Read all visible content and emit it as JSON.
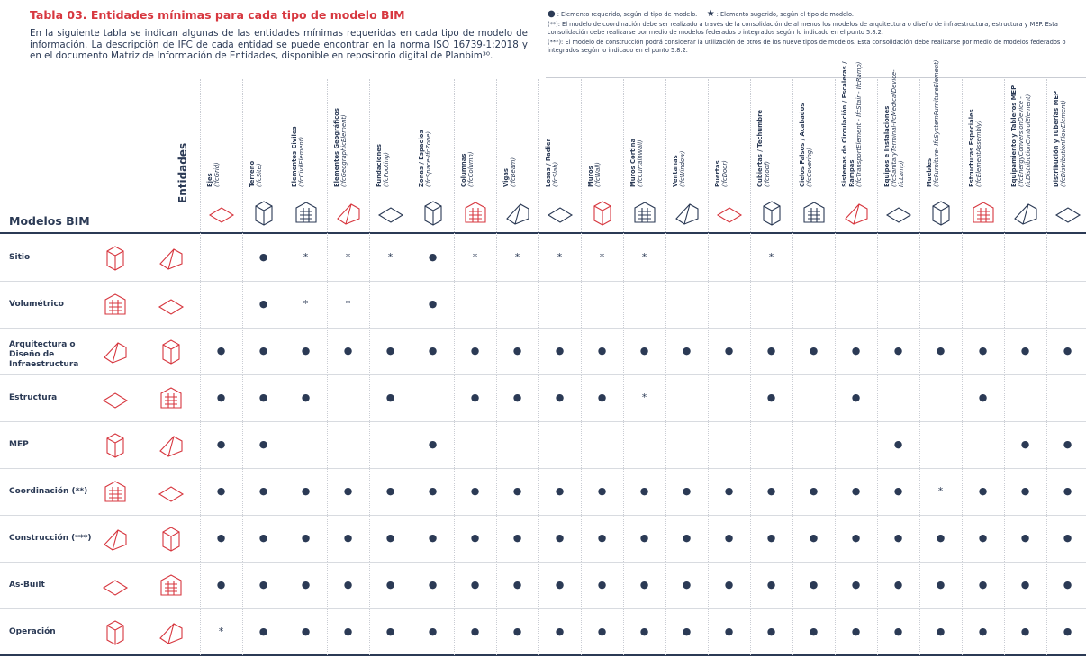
{
  "header": {
    "title": "Tabla 03. Entidades mínimas para cada tipo de modelo BIM",
    "description": "En la siguiente tabla se indican algunas de las entidades mínimas requeridas en cada tipo de modelo de información. La descripción de IFC de cada entidad se puede encontrar en la norma ISO 16739-1:2018 y en el documento Matriz de Información de Entidades, disponible en repositorio digital de Planbim³⁰."
  },
  "legend": {
    "required_symbol": "●",
    "required_text": ": Elemento requerido, según el tipo de modelo.",
    "suggested_symbol": "★",
    "suggested_text": ": Elemento sugerido, según el tipo de modelo.",
    "notes": [
      "(**): El modelo de coordinación debe ser realizado a través de la consolidación de al menos los modelos de arquitectura o diseño de infraestructura, estructura y MEP. Esta consolidación debe realizarse por medio de modelos federados o integrados según lo indicado en el punto 5.8.2.",
      "(***): El modelo de construcción podrá considerar la utilización de otros de los nueve tipos de modelos. Esta consolidación debe realizarse por medio de modelos federados o integrados según lo indicado en el punto 5.8.2."
    ]
  },
  "table": {
    "row_header": "Modelos BIM",
    "column_header": "Entidades",
    "columns": [
      {
        "name": "Ejes",
        "ifc": "(IfcGrid)"
      },
      {
        "name": "Terreno",
        "ifc": "(IfcSite)"
      },
      {
        "name": "Elementos Civiles",
        "ifc": "(IfcCivilElement)"
      },
      {
        "name": "Elementos Geográficos",
        "ifc": "(IfcGeographicElement)"
      },
      {
        "name": "Fundaciones",
        "ifc": "(IfcFooting)"
      },
      {
        "name": "Zonas / Espacios",
        "ifc": "(IfcSpace-IfcZone)"
      },
      {
        "name": "Columnas",
        "ifc": "(IfcColumn)"
      },
      {
        "name": "Vigas",
        "ifc": "(IfcBeam)"
      },
      {
        "name": "Losas / Radier",
        "ifc": "(IfcSlab)"
      },
      {
        "name": "Muros",
        "ifc": "(IfcWall)"
      },
      {
        "name": "Muros Cortina",
        "ifc": "(IfcCurtainWall)"
      },
      {
        "name": "Ventanas",
        "ifc": "(IfcWindow)"
      },
      {
        "name": "Puertas",
        "ifc": "(IfcDoor)"
      },
      {
        "name": "Cubiertas / Techumbre",
        "ifc": "(IfcRoof)"
      },
      {
        "name": "Cielos Falsos / Acabados",
        "ifc": "(IfcCovering)"
      },
      {
        "name": "Sistemas de Circulación / Escaleras / Rampas",
        "ifc": "(IfcTransportElement - IfcStair - IfcRamp)"
      },
      {
        "name": "Equipos e Instalaciones",
        "ifc": "(IfcSanitaryTerminal-IfcMedicalDevice-IfcLamp)"
      },
      {
        "name": "Muebles",
        "ifc": "(IfcFurniture- IfcSystemFurnitureElement)"
      },
      {
        "name": "Estructuras Especiales",
        "ifc": "(IfcElementAssembly)"
      },
      {
        "name": "Equipamiento y Tableros MEP",
        "ifc": "(IfcEnergyConversionDevice - IfcDistributionControlElement)"
      },
      {
        "name": "Distribución y Tuberías MEP",
        "ifc": "(IfcDistributionFlowElement)"
      }
    ],
    "rows": [
      {
        "label": "Sitio",
        "cells": [
          null,
          "●",
          "*",
          "*",
          "*",
          "●",
          "*",
          "*",
          "*",
          "*",
          "*",
          null,
          null,
          "*",
          null,
          null,
          null,
          null,
          null,
          null,
          null
        ]
      },
      {
        "label": "Volumétrico",
        "cells": [
          null,
          "●",
          "*",
          "*",
          null,
          "●",
          null,
          null,
          null,
          null,
          null,
          null,
          null,
          null,
          null,
          null,
          null,
          null,
          null,
          null,
          null
        ]
      },
      {
        "label": "Arquitectura o Diseño de Infraestructura",
        "cells": [
          "●",
          "●",
          "●",
          "●",
          "●",
          "●",
          "●",
          "●",
          "●",
          "●",
          "●",
          "●",
          "●",
          "●",
          "●",
          "●",
          "●",
          "●",
          "●",
          "●",
          "●"
        ]
      },
      {
        "label": "Estructura",
        "cells": [
          "●",
          "●",
          "●",
          null,
          "●",
          null,
          "●",
          "●",
          "●",
          "●",
          "*",
          null,
          null,
          "●",
          null,
          "●",
          null,
          null,
          "●",
          null,
          null
        ]
      },
      {
        "label": "MEP",
        "cells": [
          "●",
          "●",
          null,
          null,
          null,
          "●",
          null,
          null,
          null,
          null,
          null,
          null,
          null,
          null,
          null,
          null,
          "●",
          null,
          null,
          "●",
          "●"
        ]
      },
      {
        "label": "Coordinación (**)",
        "cells": [
          "●",
          "●",
          "●",
          "●",
          "●",
          "●",
          "●",
          "●",
          "●",
          "●",
          "●",
          "●",
          "●",
          "●",
          "●",
          "●",
          "●",
          "*",
          "●",
          "●",
          "●"
        ]
      },
      {
        "label": "Construcción (***)",
        "cells": [
          "●",
          "●",
          "●",
          "●",
          "●",
          "●",
          "●",
          "●",
          "●",
          "●",
          "●",
          "●",
          "●",
          "●",
          "●",
          "●",
          "●",
          "●",
          "●",
          "●",
          "●"
        ]
      },
      {
        "label": "As-Built",
        "cells": [
          "●",
          "●",
          "●",
          "●",
          "●",
          "●",
          "●",
          "●",
          "●",
          "●",
          "●",
          "●",
          "●",
          "●",
          "●",
          "●",
          "●",
          "●",
          "●",
          "●",
          "●"
        ]
      },
      {
        "label": "Operación",
        "cells": [
          "*",
          "●",
          "●",
          "●",
          "●",
          "●",
          "●",
          "●",
          "●",
          "●",
          "●",
          "●",
          "●",
          "●",
          "●",
          "●",
          "●",
          "●",
          "●",
          "●",
          "●"
        ]
      }
    ]
  }
}
